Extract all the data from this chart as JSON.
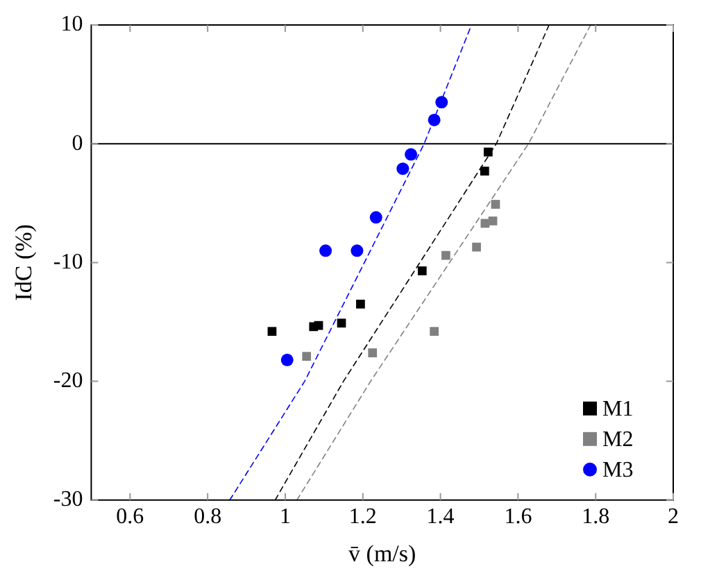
{
  "chart_data": {
    "type": "scatter",
    "xlabel": "v̄ (m/s)",
    "ylabel": "IdC (%)",
    "xlim": [
      0.5,
      2
    ],
    "xticks": [
      0.6,
      0.8,
      1,
      1.2,
      1.4,
      1.6,
      1.8,
      2
    ],
    "ylim": [
      -30,
      10
    ],
    "yticks": [
      -30,
      -20,
      -10,
      0,
      10
    ],
    "grid": false,
    "legend": "bottom right",
    "ref_lines": [
      {
        "axis": "y",
        "value": 0,
        "color": "#000000",
        "line_style": "solid"
      }
    ],
    "series": [
      {
        "name": "M1",
        "color": "#000000",
        "marker": "square",
        "x": [
          0.966,
          1.073,
          1.086,
          1.145,
          1.194,
          1.353,
          1.514,
          1.523
        ],
        "values": [
          -15.8,
          -15.4,
          -15.3,
          -15.1,
          -13.5,
          -10.7,
          -2.3,
          -0.7
        ]
      },
      {
        "name": "M2",
        "color": "#808080",
        "marker": "square",
        "x": [
          1.055,
          1.225,
          1.384,
          1.414,
          1.493,
          1.515,
          1.535,
          1.542
        ],
        "values": [
          -17.9,
          -17.6,
          -15.8,
          -9.4,
          -8.7,
          -6.7,
          -6.5,
          -5.1
        ]
      },
      {
        "name": "M3",
        "color": "#0000ff",
        "marker": "circle",
        "x": [
          1.005,
          1.104,
          1.185,
          1.234,
          1.303,
          1.324,
          1.384,
          1.403
        ],
        "values": [
          -18.2,
          -9.0,
          -9.0,
          -6.2,
          -2.1,
          -0.9,
          2.0,
          3.5
        ]
      },
      {
        "type": "line",
        "color": "#0000ff",
        "line_style": "dashed",
        "marker": "none",
        "x": [
          0.857,
          1.05,
          1.358,
          1.48
        ],
        "values": [
          -30,
          -20,
          0,
          10
        ]
      },
      {
        "type": "line",
        "color": "#000000",
        "line_style": "dashed",
        "marker": "none",
        "x": [
          0.974,
          1.15,
          1.544,
          1.68
        ],
        "values": [
          -30,
          -20,
          0,
          10
        ]
      },
      {
        "type": "line",
        "color": "#808080",
        "line_style": "dashed",
        "marker": "none",
        "x": [
          1.03,
          1.22,
          1.627,
          1.787
        ],
        "values": [
          -30,
          -20,
          0,
          10
        ]
      }
    ]
  }
}
